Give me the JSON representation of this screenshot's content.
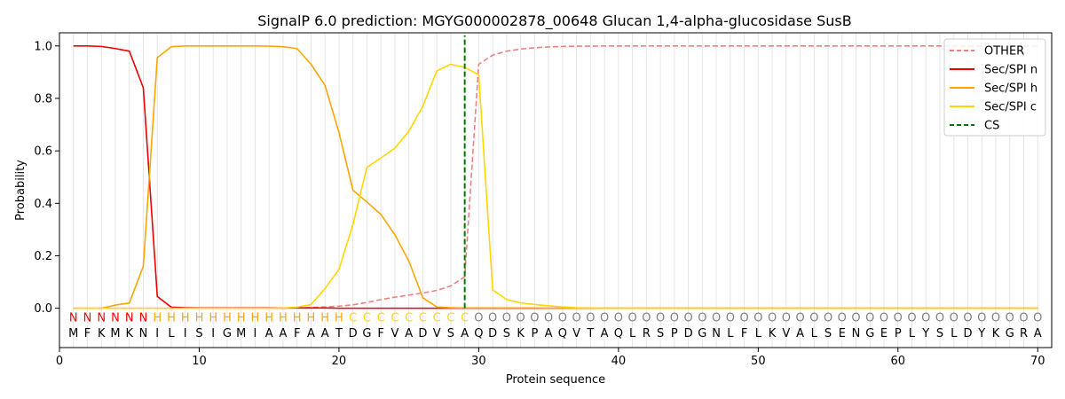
{
  "chart_data": {
    "type": "line",
    "title": "SignalP 6.0 prediction: MGYG000002878_00648 Glucan 1,4-alpha-glucosidase SusB",
    "xlabel": "Protein sequence",
    "ylabel": "Probability",
    "xlim": [
      0,
      71
    ],
    "ylim": [
      -0.15,
      1.05
    ],
    "xticks": [
      0,
      10,
      20,
      30,
      40,
      50,
      60,
      70
    ],
    "yticks": [
      0.0,
      0.2,
      0.4,
      0.6,
      0.8,
      1.0
    ],
    "grid": "vertical lines at each residue",
    "legend_position": "top-right",
    "sequence": [
      "M",
      "F",
      "K",
      "M",
      "K",
      "N",
      "I",
      "L",
      "I",
      "S",
      "I",
      "G",
      "M",
      "I",
      "A",
      "A",
      "F",
      "A",
      "A",
      "T",
      "D",
      "G",
      "F",
      "V",
      "A",
      "D",
      "V",
      "S",
      "A",
      "Q",
      "D",
      "S",
      "K",
      "P",
      "A",
      "Q",
      "V",
      "T",
      "A",
      "Q",
      "L",
      "R",
      "S",
      "P",
      "D",
      "G",
      "N",
      "L",
      "F",
      "L",
      "K",
      "V",
      "A",
      "L",
      "S",
      "E",
      "N",
      "G",
      "E",
      "P",
      "L",
      "Y",
      "S",
      "L",
      "D",
      "Y",
      "K",
      "G",
      "R",
      "A"
    ],
    "annotation": [
      "N",
      "N",
      "N",
      "N",
      "N",
      "N",
      "H",
      "H",
      "H",
      "H",
      "H",
      "H",
      "H",
      "H",
      "H",
      "H",
      "H",
      "H",
      "H",
      "H",
      "C",
      "C",
      "C",
      "C",
      "C",
      "C",
      "C",
      "C",
      "C",
      "O",
      "O",
      "O",
      "O",
      "O",
      "O",
      "O",
      "O",
      "O",
      "O",
      "O",
      "O",
      "O",
      "O",
      "O",
      "O",
      "O",
      "O",
      "O",
      "O",
      "O",
      "O",
      "O",
      "O",
      "O",
      "O",
      "O",
      "O",
      "O",
      "O",
      "O",
      "O",
      "O",
      "O",
      "O",
      "O",
      "O",
      "O",
      "O",
      "O",
      "O"
    ],
    "annotation_colors": {
      "N": "#ff0000",
      "H": "#ffa500",
      "C": "#ffd700",
      "O": "#808080"
    },
    "cleavage_site": 29,
    "series": [
      {
        "name": "OTHER",
        "color": "#f08080",
        "dash": true,
        "values": [
          0.0,
          0.0,
          0.0,
          0.0,
          0.0,
          0.0,
          0.0,
          0.0,
          0.0,
          0.0,
          0.0,
          0.0,
          0.0,
          0.0,
          0.0,
          0.0,
          0.002,
          0.003,
          0.005,
          0.008,
          0.013,
          0.022,
          0.033,
          0.042,
          0.05,
          0.058,
          0.068,
          0.085,
          0.12,
          0.93,
          0.965,
          0.98,
          0.988,
          0.993,
          0.996,
          0.998,
          0.999,
          0.999,
          1.0,
          1.0,
          1.0,
          1.0,
          1.0,
          1.0,
          1.0,
          1.0,
          1.0,
          1.0,
          1.0,
          1.0,
          1.0,
          1.0,
          1.0,
          1.0,
          1.0,
          1.0,
          1.0,
          1.0,
          1.0,
          1.0,
          1.0,
          1.0,
          1.0,
          1.0,
          1.0,
          1.0,
          1.0,
          1.0,
          1.0,
          1.0
        ]
      },
      {
        "name": "Sec/SPI n",
        "color": "#ee0000",
        "dash": false,
        "values": [
          1.0,
          1.0,
          0.998,
          0.99,
          0.98,
          0.84,
          0.045,
          0.004,
          0.002,
          0.001,
          0.001,
          0.001,
          0.001,
          0.001,
          0.001,
          0.001,
          0.001,
          0.001,
          0.001,
          0.0,
          0.0,
          0.0,
          0.0,
          0.0,
          0.0,
          0.0,
          0.0,
          0.0,
          0.0,
          0.0,
          0.0,
          0.0,
          0.0,
          0.0,
          0.0,
          0.0,
          0.0,
          0.0,
          0.0,
          0.0,
          0.0,
          0.0,
          0.0,
          0.0,
          0.0,
          0.0,
          0.0,
          0.0,
          0.0,
          0.0,
          0.0,
          0.0,
          0.0,
          0.0,
          0.0,
          0.0,
          0.0,
          0.0,
          0.0,
          0.0,
          0.0,
          0.0,
          0.0,
          0.0,
          0.0,
          0.0,
          0.0,
          0.0,
          0.0,
          0.0
        ]
      },
      {
        "name": "Sec/SPI h",
        "color": "#ffa500",
        "dash": false,
        "values": [
          0.0,
          0.0,
          0.0,
          0.012,
          0.02,
          0.16,
          0.955,
          0.997,
          1.0,
          1.0,
          1.0,
          1.0,
          1.0,
          1.0,
          0.999,
          0.997,
          0.99,
          0.93,
          0.85,
          0.67,
          0.45,
          0.405,
          0.358,
          0.28,
          0.18,
          0.04,
          0.005,
          0.002,
          0.001,
          0.001,
          0.001,
          0.001,
          0.001,
          0.001,
          0.0,
          0.0,
          0.0,
          0.0,
          0.0,
          0.0,
          0.0,
          0.0,
          0.0,
          0.0,
          0.0,
          0.0,
          0.0,
          0.0,
          0.0,
          0.0,
          0.0,
          0.0,
          0.0,
          0.0,
          0.0,
          0.0,
          0.0,
          0.0,
          0.0,
          0.0,
          0.0,
          0.0,
          0.0,
          0.0,
          0.0,
          0.0,
          0.0,
          0.0,
          0.0,
          0.0
        ]
      },
      {
        "name": "Sec/SPI c",
        "color": "#ffd700",
        "dash": false,
        "values": [
          0.0,
          0.0,
          0.0,
          0.0,
          0.0,
          0.0,
          0.0,
          0.0,
          0.0,
          0.0,
          0.0,
          0.0,
          0.0,
          0.0,
          0.0,
          0.001,
          0.004,
          0.014,
          0.075,
          0.148,
          0.32,
          0.537,
          0.573,
          0.61,
          0.675,
          0.77,
          0.905,
          0.93,
          0.918,
          0.89,
          0.07,
          0.033,
          0.02,
          0.014,
          0.009,
          0.005,
          0.002,
          0.001,
          0.0,
          0.0,
          0.0,
          0.0,
          0.0,
          0.0,
          0.0,
          0.0,
          0.0,
          0.0,
          0.0,
          0.0,
          0.0,
          0.0,
          0.0,
          0.0,
          0.0,
          0.0,
          0.0,
          0.0,
          0.0,
          0.0,
          0.0,
          0.0,
          0.0,
          0.0,
          0.0,
          0.0,
          0.0,
          0.0,
          0.0,
          0.0
        ]
      }
    ],
    "legend": [
      {
        "label": "OTHER",
        "color": "#f08080",
        "dash": true
      },
      {
        "label": "Sec/SPI n",
        "color": "#ee0000",
        "dash": false
      },
      {
        "label": "Sec/SPI h",
        "color": "#ffa500",
        "dash": false
      },
      {
        "label": "Sec/SPI c",
        "color": "#ffd700",
        "dash": false
      },
      {
        "label": "CS",
        "color": "#007700",
        "dash": true
      }
    ]
  }
}
